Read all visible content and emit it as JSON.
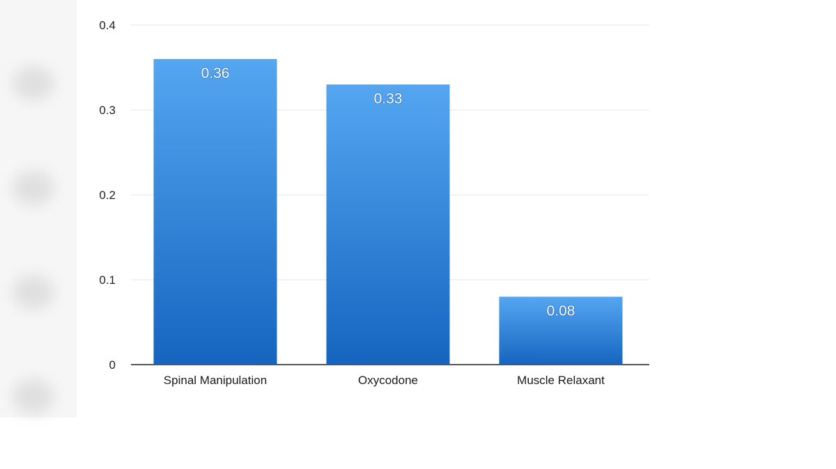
{
  "chart_data": {
    "type": "bar",
    "title": "",
    "xlabel": "",
    "ylabel": "",
    "categories": [
      "Spinal Manipulation",
      "Oxycodone",
      "Muscle Relaxant"
    ],
    "values": [
      0.36,
      0.33,
      0.08
    ],
    "data_labels": [
      "0.36",
      "0.33",
      "0.08"
    ],
    "ylim": [
      0,
      0.4
    ],
    "yticks": [
      0,
      0.1,
      0.2,
      0.3,
      0.4
    ],
    "ytick_labels": [
      "0",
      "0.1",
      "0.2",
      "0.3",
      "0.4"
    ],
    "grid": true,
    "legend": "none",
    "colors": {
      "bar_top": "#55a6f1",
      "bar_bottom": "#1565c0",
      "grid": "#e4e4e4",
      "axis": "#555555"
    }
  }
}
